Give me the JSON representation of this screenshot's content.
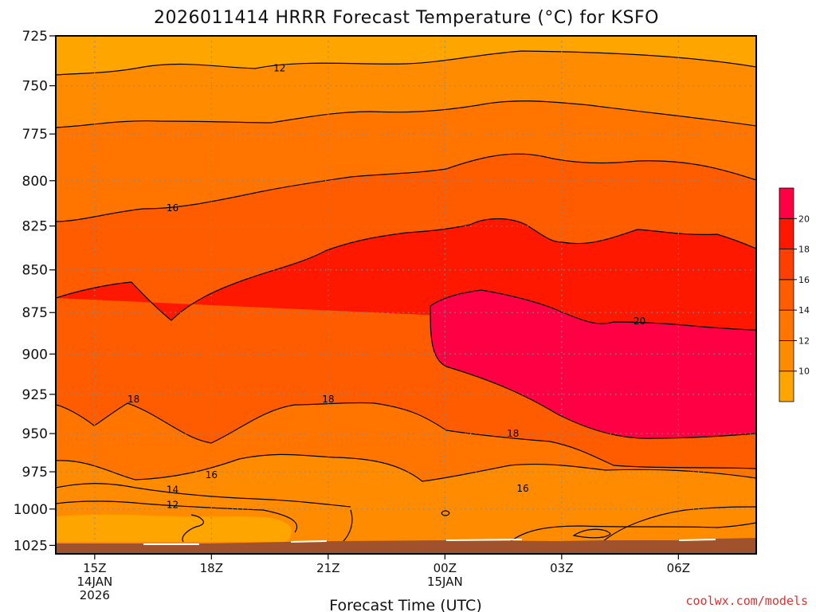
{
  "chart_data": {
    "type": "heatmap",
    "title": "2026011414 HRRR Forecast Temperature (°C) for KSFO",
    "xlabel": "Forecast Time (UTC)",
    "ylabel": "",
    "y_ticks": [
      725,
      750,
      775,
      800,
      825,
      850,
      875,
      900,
      925,
      950,
      975,
      1000,
      1025
    ],
    "ylim": [
      725,
      1027
    ],
    "y_scale": "log",
    "x_ticks": [
      {
        "time": "2026-01-14T15:00Z",
        "lines": [
          "15Z",
          "14JAN",
          "2026"
        ]
      },
      {
        "time": "2026-01-14T18:00Z",
        "lines": [
          "18Z"
        ]
      },
      {
        "time": "2026-01-14T21:00Z",
        "lines": [
          "21Z"
        ]
      },
      {
        "time": "2026-01-15T00:00Z",
        "lines": [
          "00Z",
          "15JAN"
        ]
      },
      {
        "time": "2026-01-15T03:00Z",
        "lines": [
          "03Z"
        ]
      },
      {
        "time": "2026-01-15T06:00Z",
        "lines": [
          "06Z"
        ]
      }
    ],
    "xlim": [
      "2026-01-14T14:00Z",
      "2026-01-15T08:00Z"
    ],
    "grid": true,
    "colorbar": {
      "placement": "right",
      "levels": [
        8,
        10,
        12,
        14,
        16,
        18,
        20,
        22
      ],
      "labels": [
        "10",
        "12",
        "14",
        "16",
        "18",
        "20"
      ],
      "colors": [
        "#FFA500",
        "#FF8C00",
        "#FF7500",
        "#FF5C00",
        "#FF3F00",
        "#FF1800",
        "#FF0044"
      ]
    },
    "isotherms": [
      {
        "value": 12,
        "pressure_by_time": [
          [
            745,
            743,
            738,
            740,
            744,
            740,
            738,
            735,
            737,
            742
          ]
        ]
      },
      {
        "value": 16,
        "pressure_by_time": [
          [
            822,
            812,
            806,
            802,
            795,
            789,
            785,
            788,
            792,
            800
          ]
        ]
      },
      {
        "value": 18,
        "pressure_by_time": [
          [
            875,
            865,
            848,
            835,
            828,
            822,
            832,
            830,
            833,
            836
          ]
        ]
      },
      {
        "value": 20,
        "pressure_by_time": [
          [
            0,
            0,
            0,
            0,
            0,
            866,
            876,
            884,
            880,
            884
          ]
        ]
      }
    ],
    "contour_labels": [
      {
        "text": "12",
        "time": "2026-01-14T19:45Z",
        "pressure": 741
      },
      {
        "text": "16",
        "time": "2026-01-14T17:00Z",
        "pressure": 815
      },
      {
        "text": "18",
        "time": "2026-01-14T16:00Z",
        "pressure": 928
      },
      {
        "text": "18",
        "time": "2026-01-14T21:00Z",
        "pressure": 928
      },
      {
        "text": "20",
        "time": "2026-01-15T05:00Z",
        "pressure": 880
      },
      {
        "text": "18",
        "time": "2026-01-15T01:45Z",
        "pressure": 950
      },
      {
        "text": "16",
        "time": "2026-01-14T18:00Z",
        "pressure": 977
      },
      {
        "text": "14",
        "time": "2026-01-14T17:00Z",
        "pressure": 987
      },
      {
        "text": "12",
        "time": "2026-01-14T17:00Z",
        "pressure": 997
      },
      {
        "text": "16",
        "time": "2026-01-15T02:00Z",
        "pressure": 986
      }
    ],
    "colors": {
      "terrain": "#A0522D",
      "border": "#000000",
      "grid": "#888888"
    }
  },
  "credit": "coolwx.com/models"
}
